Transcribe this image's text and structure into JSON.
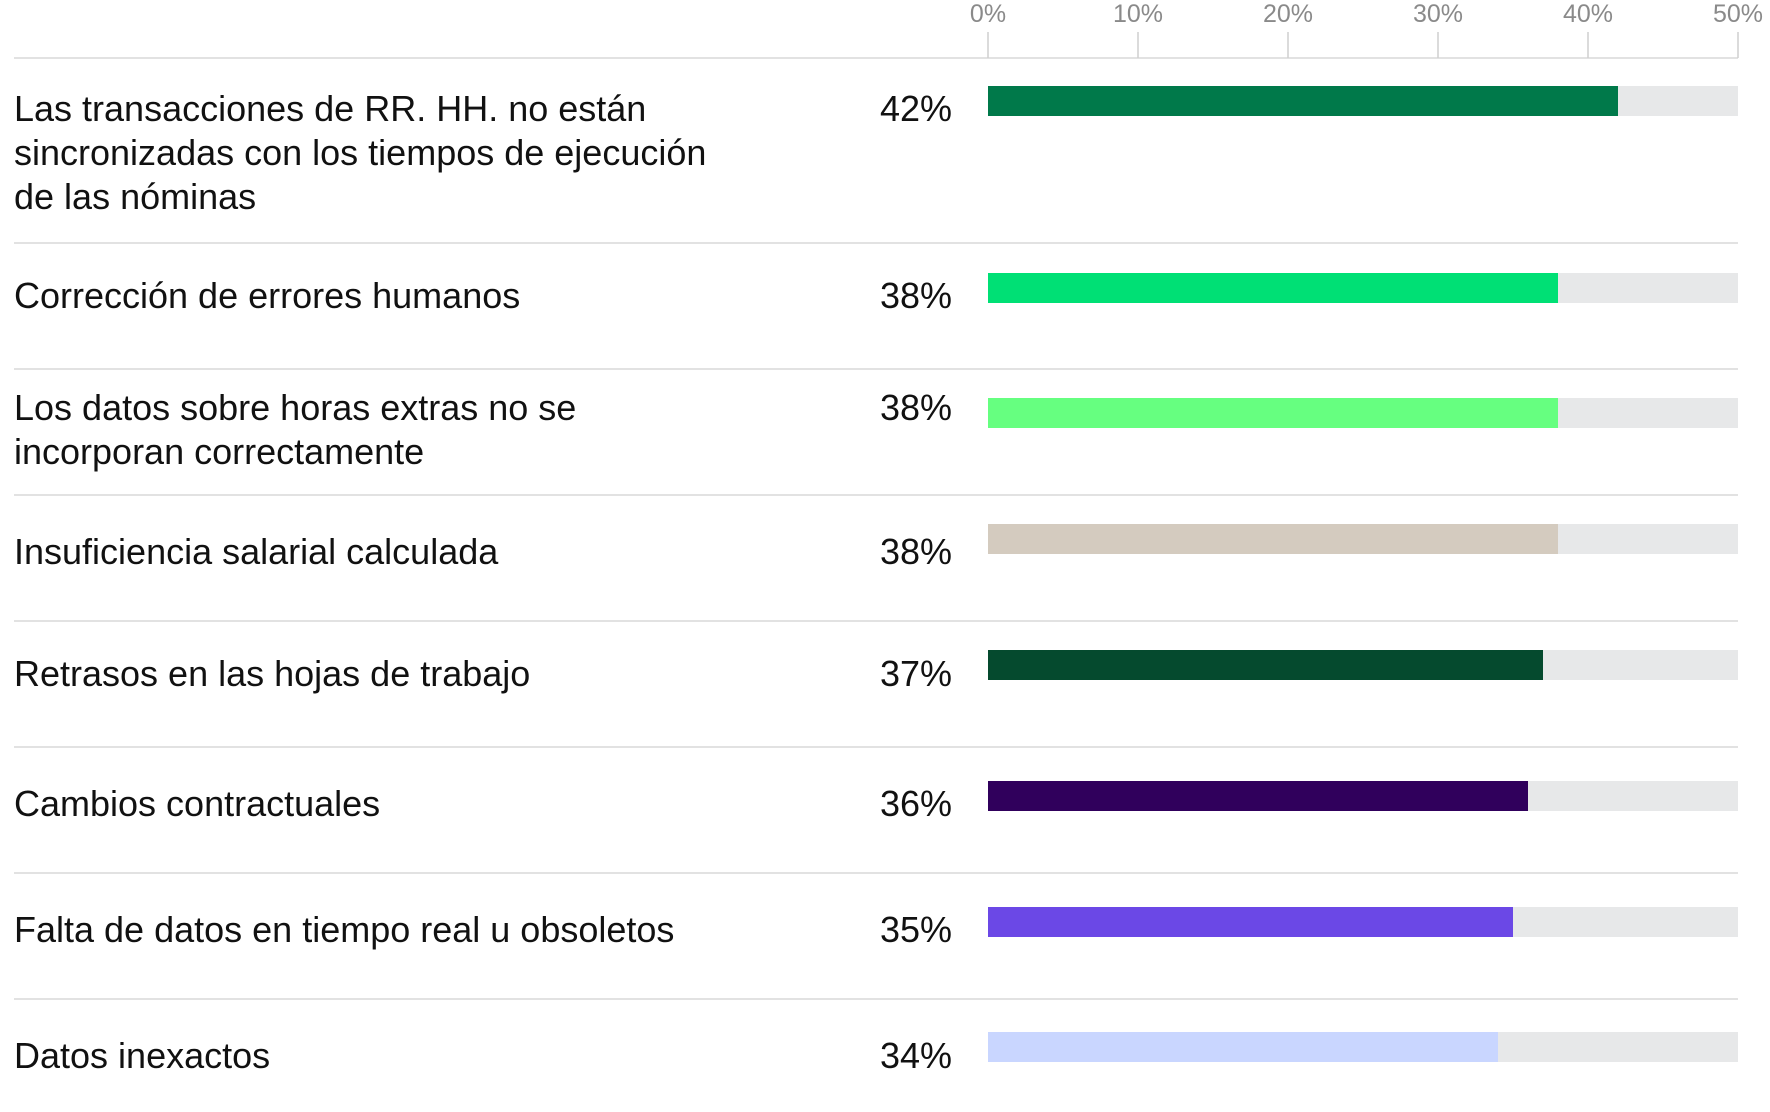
{
  "chart_data": {
    "type": "bar",
    "orientation": "horizontal",
    "xlim": [
      0,
      50
    ],
    "ticks": [
      0,
      10,
      20,
      30,
      40,
      50
    ],
    "tick_labels": [
      "0%",
      "10%",
      "20%",
      "30%",
      "40%",
      "50%"
    ],
    "grid": false,
    "track_color": "#e7e8e9",
    "categories": [
      [
        "Las transacciones de RR. HH. no están",
        "sincronizadas con los tiempos de ejecución",
        "de las nóminas"
      ],
      [
        "Corrección de errores humanos"
      ],
      [
        "Los datos sobre horas extras no se",
        "incorporan correctamente"
      ],
      [
        "Insuficiencia salarial calculada"
      ],
      [
        "Retrasos en las hojas de trabajo"
      ],
      [
        "Cambios contractuales"
      ],
      [
        "Falta de datos en tiempo real u obsoletos"
      ],
      [
        "Datos inexactos"
      ]
    ],
    "values": [
      42,
      38,
      38,
      38,
      37,
      36,
      35,
      34
    ],
    "value_labels": [
      "42%",
      "38%",
      "38%",
      "38%",
      "37%",
      "36%",
      "35%",
      "34%"
    ],
    "colors": [
      "#00794a",
      "#00e075",
      "#66ff80",
      "#d4cbbf",
      "#054a2e",
      "#30005c",
      "#6b48e6",
      "#c9d6ff"
    ]
  }
}
